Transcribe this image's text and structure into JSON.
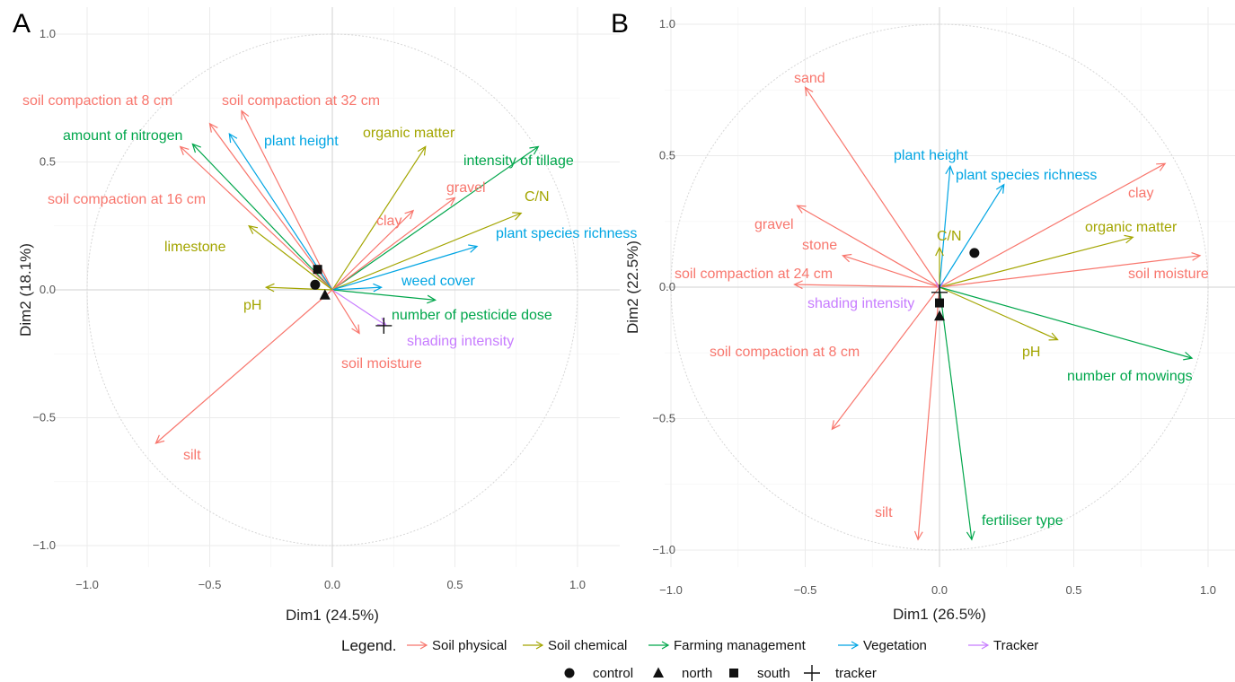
{
  "colors": {
    "Soil physical": "#f8766d",
    "Soil chemical": "#a3a500",
    "Farming management": "#00a64b",
    "Vegetation": "#00a5e3",
    "Tracker": "#c77cff"
  },
  "legend": {
    "title": "Legend.",
    "groups": [
      "Soil physical",
      "Soil chemical",
      "Farming management",
      "Vegetation",
      "Tracker"
    ],
    "shapes": [
      {
        "label": "control",
        "shape": "circle"
      },
      {
        "label": "north",
        "shape": "triangle"
      },
      {
        "label": "south",
        "shape": "square"
      },
      {
        "label": "tracker",
        "shape": "plus"
      }
    ]
  },
  "chart_data": [
    {
      "type": "scatter",
      "panel": "A",
      "xlabel": "Dim1 (24.5%)",
      "ylabel": "Dim2 (18.1%)",
      "xlim": [
        -1.0,
        1.0
      ],
      "ylim": [
        -1.0,
        1.0
      ],
      "xticks": [
        "−1.0",
        "−0.5",
        "0.0",
        "0.5",
        "1.0"
      ],
      "yticks": [
        "−1.0",
        "−0.5",
        "0.0",
        "0.5",
        "1.0"
      ],
      "vectors": [
        {
          "name": "soil compaction at 8 cm",
          "group": "Soil physical",
          "x": -0.5,
          "y": 0.65
        },
        {
          "name": "soil compaction at 32 cm",
          "group": "Soil physical",
          "x": -0.37,
          "y": 0.7
        },
        {
          "name": "amount of nitrogen",
          "group": "Farming management",
          "x": -0.57,
          "y": 0.57
        },
        {
          "name": "plant height",
          "group": "Vegetation",
          "x": -0.42,
          "y": 0.61
        },
        {
          "name": "organic matter",
          "group": "Soil chemical",
          "x": 0.38,
          "y": 0.56
        },
        {
          "name": "intensity of tillage",
          "group": "Farming management",
          "x": 0.84,
          "y": 0.56
        },
        {
          "name": "soil compaction at 16 cm",
          "group": "Soil physical",
          "x": -0.62,
          "y": 0.56
        },
        {
          "name": "gravel",
          "group": "Soil physical",
          "x": 0.5,
          "y": 0.36
        },
        {
          "name": "C/N",
          "group": "Soil chemical",
          "x": 0.77,
          "y": 0.3
        },
        {
          "name": "clay",
          "group": "Soil physical",
          "x": 0.33,
          "y": 0.31
        },
        {
          "name": "plant species richness",
          "group": "Vegetation",
          "x": 0.59,
          "y": 0.17
        },
        {
          "name": "limestone",
          "group": "Soil chemical",
          "x": -0.34,
          "y": 0.25
        },
        {
          "name": "weed cover",
          "group": "Vegetation",
          "x": 0.2,
          "y": 0.01
        },
        {
          "name": "pH",
          "group": "Soil chemical",
          "x": -0.27,
          "y": 0.01
        },
        {
          "name": "number of pesticide dose",
          "group": "Farming management",
          "x": 0.42,
          "y": -0.04
        },
        {
          "name": "shading intensity",
          "group": "Tracker",
          "x": 0.22,
          "y": -0.14
        },
        {
          "name": "soil moisture",
          "group": "Soil physical",
          "x": 0.11,
          "y": -0.17
        },
        {
          "name": "silt",
          "group": "Soil physical",
          "x": -0.72,
          "y": -0.6
        }
      ],
      "points": [
        {
          "label": "control",
          "x": -0.07,
          "y": 0.02
        },
        {
          "label": "north",
          "x": -0.03,
          "y": -0.02
        },
        {
          "label": "south",
          "x": -0.06,
          "y": 0.08
        },
        {
          "label": "tracker",
          "x": 0.21,
          "y": -0.14
        }
      ]
    },
    {
      "type": "scatter",
      "panel": "B",
      "xlabel": "Dim1 (26.5%)",
      "ylabel": "Dim2 (22.5%)",
      "xlim": [
        -1.0,
        1.0
      ],
      "ylim": [
        -1.0,
        1.0
      ],
      "xticks": [
        "−1.0",
        "−0.5",
        "0.0",
        "0.5",
        "1.0"
      ],
      "yticks": [
        "−1.0",
        "−0.5",
        "0.0",
        "0.5",
        "1.0"
      ],
      "vectors": [
        {
          "name": "sand",
          "group": "Soil physical",
          "x": -0.5,
          "y": 0.76
        },
        {
          "name": "plant height",
          "group": "Vegetation",
          "x": 0.04,
          "y": 0.46
        },
        {
          "name": "plant species richness",
          "group": "Vegetation",
          "x": 0.24,
          "y": 0.39
        },
        {
          "name": "clay",
          "group": "Soil physical",
          "x": 0.84,
          "y": 0.47
        },
        {
          "name": "organic matter",
          "group": "Soil chemical",
          "x": 0.72,
          "y": 0.19
        },
        {
          "name": "soil moisture",
          "group": "Soil physical",
          "x": 0.97,
          "y": 0.12
        },
        {
          "name": "gravel",
          "group": "Soil physical",
          "x": -0.53,
          "y": 0.31
        },
        {
          "name": "C/N",
          "group": "Soil chemical",
          "x": 0.0,
          "y": 0.15
        },
        {
          "name": "stone",
          "group": "Soil physical",
          "x": -0.36,
          "y": 0.12
        },
        {
          "name": "soil compaction at 24 cm",
          "group": "Soil physical",
          "x": -0.54,
          "y": 0.01
        },
        {
          "name": "shading intensity",
          "group": "Tracker",
          "x": 0.0,
          "y": -0.01
        },
        {
          "name": "pH",
          "group": "Soil chemical",
          "x": 0.44,
          "y": -0.2
        },
        {
          "name": "number of mowings",
          "group": "Farming management",
          "x": 0.94,
          "y": -0.27
        },
        {
          "name": "soil compaction at 8 cm",
          "group": "Soil physical",
          "x": -0.4,
          "y": -0.54
        },
        {
          "name": "silt",
          "group": "Soil physical",
          "x": -0.08,
          "y": -0.96
        },
        {
          "name": "fertiliser type",
          "group": "Farming management",
          "x": 0.12,
          "y": -0.96
        }
      ],
      "points": [
        {
          "label": "control",
          "x": 0.13,
          "y": 0.13
        },
        {
          "label": "north",
          "x": 0.0,
          "y": -0.11
        },
        {
          "label": "south",
          "x": 0.0,
          "y": -0.06
        },
        {
          "label": "tracker",
          "x": 0.0,
          "y": -0.02
        }
      ]
    }
  ]
}
